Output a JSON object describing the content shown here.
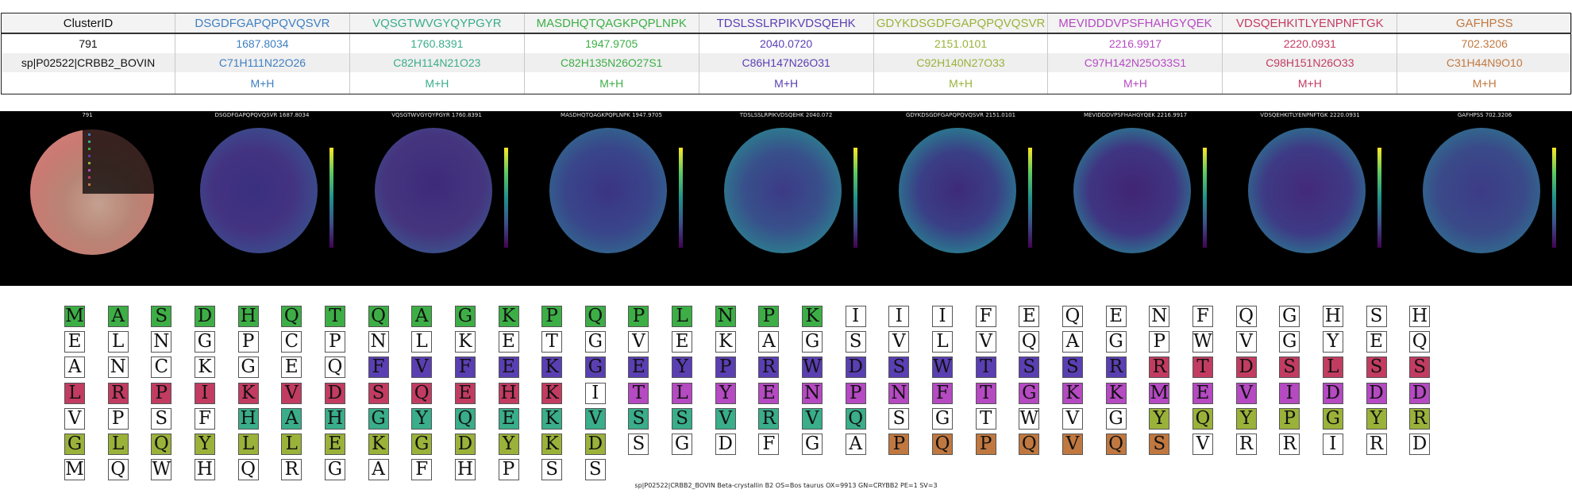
{
  "table": {
    "header_label": "ClusterID",
    "row_labels": [
      "791",
      "sp|P02522|CRBB2_BOVIN",
      ""
    ],
    "columns": [
      {
        "peptide": "DSGDFGAPQPQVQSVR",
        "mass": "1687.8034",
        "formula": "C71H111N22O26",
        "adduct": "M+H",
        "color": "#3e7fc2"
      },
      {
        "peptide": "VQSGTWVGYQYPGYR",
        "mass": "1760.8391",
        "formula": "C82H114N21O23",
        "adduct": "M+H",
        "color": "#3aad8a"
      },
      {
        "peptide": "MASDHQTQAGKPQPLNPK",
        "mass": "1947.9705",
        "formula": "C82H135N26O27S1",
        "adduct": "M+H",
        "color": "#3dae46"
      },
      {
        "peptide": "TDSLSSLRPIKVDSQEHK",
        "mass": "2040.0720",
        "formula": "C86H147N26O31",
        "adduct": "M+H",
        "color": "#5a3fb3"
      },
      {
        "peptide": "GDYKDSGDFGAPQPQVQSVR",
        "mass": "2151.0101",
        "formula": "C92H140N27O33",
        "adduct": "M+H",
        "color": "#9ab23a"
      },
      {
        "peptide": "MEVIDDDVPSFHAHGYQEK",
        "mass": "2216.9917",
        "formula": "C97H142N25O33S1",
        "adduct": "M+H",
        "color": "#b54ac2"
      },
      {
        "peptide": "VDSQEHKITLYENPNFTGK",
        "mass": "2220.0931",
        "formula": "C98H151N26O33",
        "adduct": "M+H",
        "color": "#c23c62"
      },
      {
        "peptide": "GAFHPSS",
        "mass": "702.3206",
        "formula": "C31H44N9O10",
        "adduct": "M+H",
        "color": "#c07840"
      }
    ]
  },
  "panels": [
    {
      "title": "791"
    },
    {
      "title": "DSGDFGAPQPQVQSVR 1687.8034"
    },
    {
      "title": "VQSGTWVGYQYPGYR 1760.8391"
    },
    {
      "title": "MASDHQTQAGKPQPLNPK 1947.9705"
    },
    {
      "title": "TDSLSSLRPIKVDSQEHK 2040.072"
    },
    {
      "title": "GDYKDSGDFGAPQPQVQSVR 2151.0101"
    },
    {
      "title": "MEVIDDDVPSFHAHGYQEK 2216.9917"
    },
    {
      "title": "VDSQEHKITLYENPNFTGK 2220.0931"
    },
    {
      "title": "GAFHPSS 702.3206"
    }
  ],
  "sequence": {
    "residues": "MASDHQTQAGKPQPLNPKIIIFEQENFQGHSHELNGPCPNLKETGVEKAGSVLVQAGPWVGYEQANCKGEQFVFEKGEYPRWDSWTSSRRTDSLSSLRPIKVDSQEHKITLYENPNFTGKKMEVIDDDVPSFHAHGYQEKVSSVRVQSGTWVGYQYPGYRGLQYLLEKGDYKDSGDFGAPQPQVQSVRRIRDMQWHQRGAFHPSS",
    "highlights": "MMMMMMMMMMMMMMMMMM.....................................................TTTTTTTTTTTTTTTTTTRRRRRRRRRRRRRRRRRRR.EEEEEEEEEEEEEEEEEEE....VVVVVVVVVVVVVVV......GGGGGGGGGGGGGGGGGGGG......AAAAAAA",
    "highlight_colors": {
      "M": "#3dae46",
      "T": "#5a3fb3",
      "R": "#c23c62",
      "E": "#b54ac2",
      "V": "#3aad8a",
      "G": "#9ab23a",
      "A": "#c07840"
    }
  },
  "footer": "sp|P02522|CRBB2_BOVIN Beta-crystallin B2 OS=Bos taurus OX=9913 GN=CRYBB2 PE=1 SV=3"
}
